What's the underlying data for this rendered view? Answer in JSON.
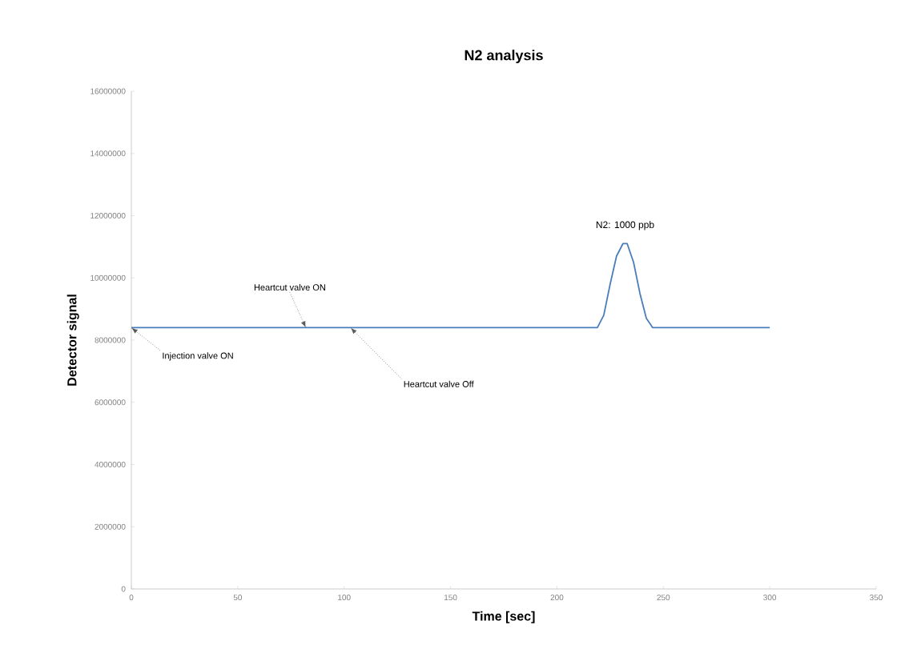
{
  "chart_data": {
    "type": "line",
    "title": "N2 analysis",
    "xlabel": "Time [sec]",
    "ylabel": "Detector signal",
    "x": [
      0,
      219,
      222,
      225,
      228,
      231,
      233,
      236,
      239,
      242,
      245,
      300
    ],
    "series": [
      {
        "color": "#4a7ebb",
        "values": [
          8400000,
          8400000,
          8800000,
          9800000,
          10700000,
          11100000,
          11100000,
          10500000,
          9500000,
          8700000,
          8400000,
          8400000
        ]
      }
    ],
    "xlim": [
      0,
      350
    ],
    "xticks": [
      0,
      50,
      100,
      150,
      200,
      250,
      300,
      350
    ],
    "ylim": [
      0,
      16000000
    ],
    "yticks": [
      0,
      2000000,
      4000000,
      6000000,
      8000000,
      10000000,
      12000000,
      14000000,
      16000000
    ],
    "marker": "none",
    "line_style": "solid",
    "annotations": [
      {
        "text": "Injection valve ON",
        "x": 0,
        "y": 8400000
      },
      {
        "text": "Heartcut valve ON",
        "x": 82,
        "y": 8400000
      },
      {
        "text": "Heartcut valve Off",
        "x": 103,
        "y": 8400000
      },
      {
        "text": "N2: 1000 ppb",
        "x": 232,
        "y": 11100000
      }
    ]
  }
}
